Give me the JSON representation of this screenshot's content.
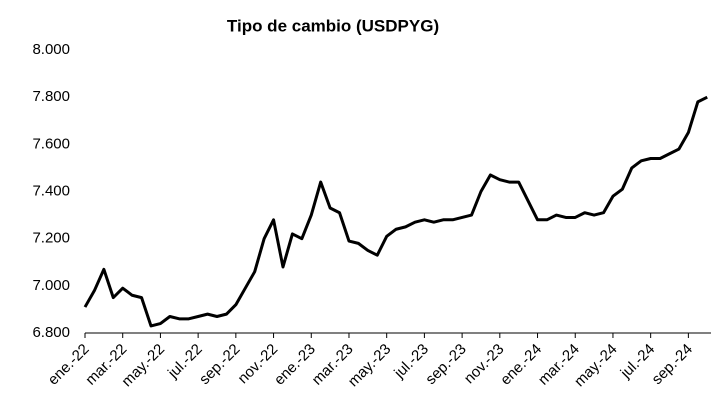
{
  "chart_data": {
    "type": "line",
    "title": "Tipo de cambio (USDPYG)",
    "x": [
      0,
      0.5,
      1,
      1.5,
      2,
      2.5,
      3,
      3.5,
      4,
      4.5,
      5,
      5.5,
      6,
      6.5,
      7,
      7.5,
      8,
      8.5,
      9,
      9.5,
      10,
      10.5,
      11,
      11.5,
      12,
      12.5,
      13,
      13.5,
      14,
      14.5,
      15,
      15.5,
      16,
      16.5,
      17,
      17.5,
      18,
      18.5,
      19,
      19.5,
      20,
      20.5,
      21,
      21.5,
      22,
      22.5,
      23,
      23.5,
      24,
      24.5,
      25,
      25.5,
      26,
      26.5,
      27,
      27.5,
      28,
      28.5,
      29,
      29.5,
      30,
      30.5,
      31,
      31.5,
      32,
      32.5,
      33
    ],
    "series": [
      {
        "name": "USDPYG",
        "color": "#000000",
        "values": [
          6910,
          6980,
          7070,
          6950,
          6990,
          6960,
          6950,
          6830,
          6840,
          6870,
          6860,
          6860,
          6870,
          6880,
          6870,
          6880,
          6920,
          6990,
          7060,
          7200,
          7280,
          7080,
          7220,
          7200,
          7300,
          7440,
          7330,
          7310,
          7190,
          7180,
          7150,
          7130,
          7210,
          7240,
          7250,
          7270,
          7280,
          7270,
          7280,
          7280,
          7290,
          7300,
          7400,
          7470,
          7450,
          7440,
          7440,
          7360,
          7280,
          7280,
          7300,
          7290,
          7290,
          7310,
          7300,
          7310,
          7380,
          7410,
          7500,
          7530,
          7540,
          7540,
          7560,
          7580,
          7650,
          7780,
          7800
        ]
      }
    ],
    "xlim": [
      0,
      33.2
    ],
    "xticks": [
      {
        "value": 0,
        "label": "ene.-22"
      },
      {
        "value": 2,
        "label": "mar.-22"
      },
      {
        "value": 4,
        "label": "may.-22"
      },
      {
        "value": 6,
        "label": "jul.-22"
      },
      {
        "value": 8,
        "label": "sep.-22"
      },
      {
        "value": 10,
        "label": "nov.-22"
      },
      {
        "value": 12,
        "label": "ene.-23"
      },
      {
        "value": 14,
        "label": "mar.-23"
      },
      {
        "value": 16,
        "label": "may.-23"
      },
      {
        "value": 18,
        "label": "jul.-23"
      },
      {
        "value": 20,
        "label": "sep.-23"
      },
      {
        "value": 22,
        "label": "nov.-23"
      },
      {
        "value": 24,
        "label": "ene.-24"
      },
      {
        "value": 26,
        "label": "mar.-24"
      },
      {
        "value": 28,
        "label": "may.-24"
      },
      {
        "value": 30,
        "label": "jul.-24"
      },
      {
        "value": 32,
        "label": "sep.-24"
      }
    ],
    "ylim": [
      6800,
      8000
    ],
    "yticks": [
      {
        "value": 6800,
        "label": "6.800"
      },
      {
        "value": 7000,
        "label": "7.000"
      },
      {
        "value": 7200,
        "label": "7.200"
      },
      {
        "value": 7400,
        "label": "7.400"
      },
      {
        "value": 7600,
        "label": "7.600"
      },
      {
        "value": 7800,
        "label": "7.800"
      },
      {
        "value": 8000,
        "label": "8.000"
      }
    ],
    "grid": false
  }
}
